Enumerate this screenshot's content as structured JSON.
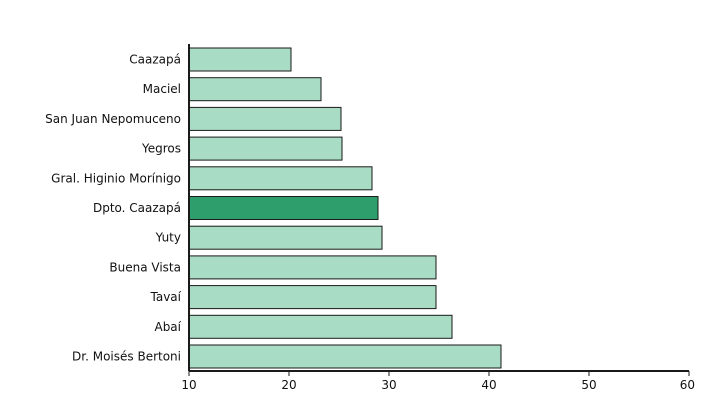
{
  "chart_data": {
    "type": "bar",
    "orientation": "horizontal",
    "categories": [
      "Caazapá",
      "Maciel",
      "San Juan Nepomuceno",
      "Yegros",
      "Gral. Higinio Morínigo",
      "Dpto. Caazapá",
      "Yuty",
      "Buena Vista",
      "Tavaí",
      "Abaí",
      "Dr. Moisés Bertoni"
    ],
    "values": [
      20.2,
      23.2,
      25.2,
      25.3,
      28.3,
      28.9,
      29.3,
      34.7,
      34.7,
      36.3,
      41.2
    ],
    "highlight": "Dpto. Caazapá",
    "xlim": [
      10,
      60
    ],
    "xticks": [
      10,
      20,
      30,
      40,
      50,
      60
    ],
    "title": "",
    "xlabel": "",
    "ylabel": "",
    "grid": false,
    "colors": {
      "bar": "#a8dcc4",
      "highlight": "#2e9e6c",
      "edge": "#1a1a1a",
      "axis": "#1a1a1a"
    }
  }
}
